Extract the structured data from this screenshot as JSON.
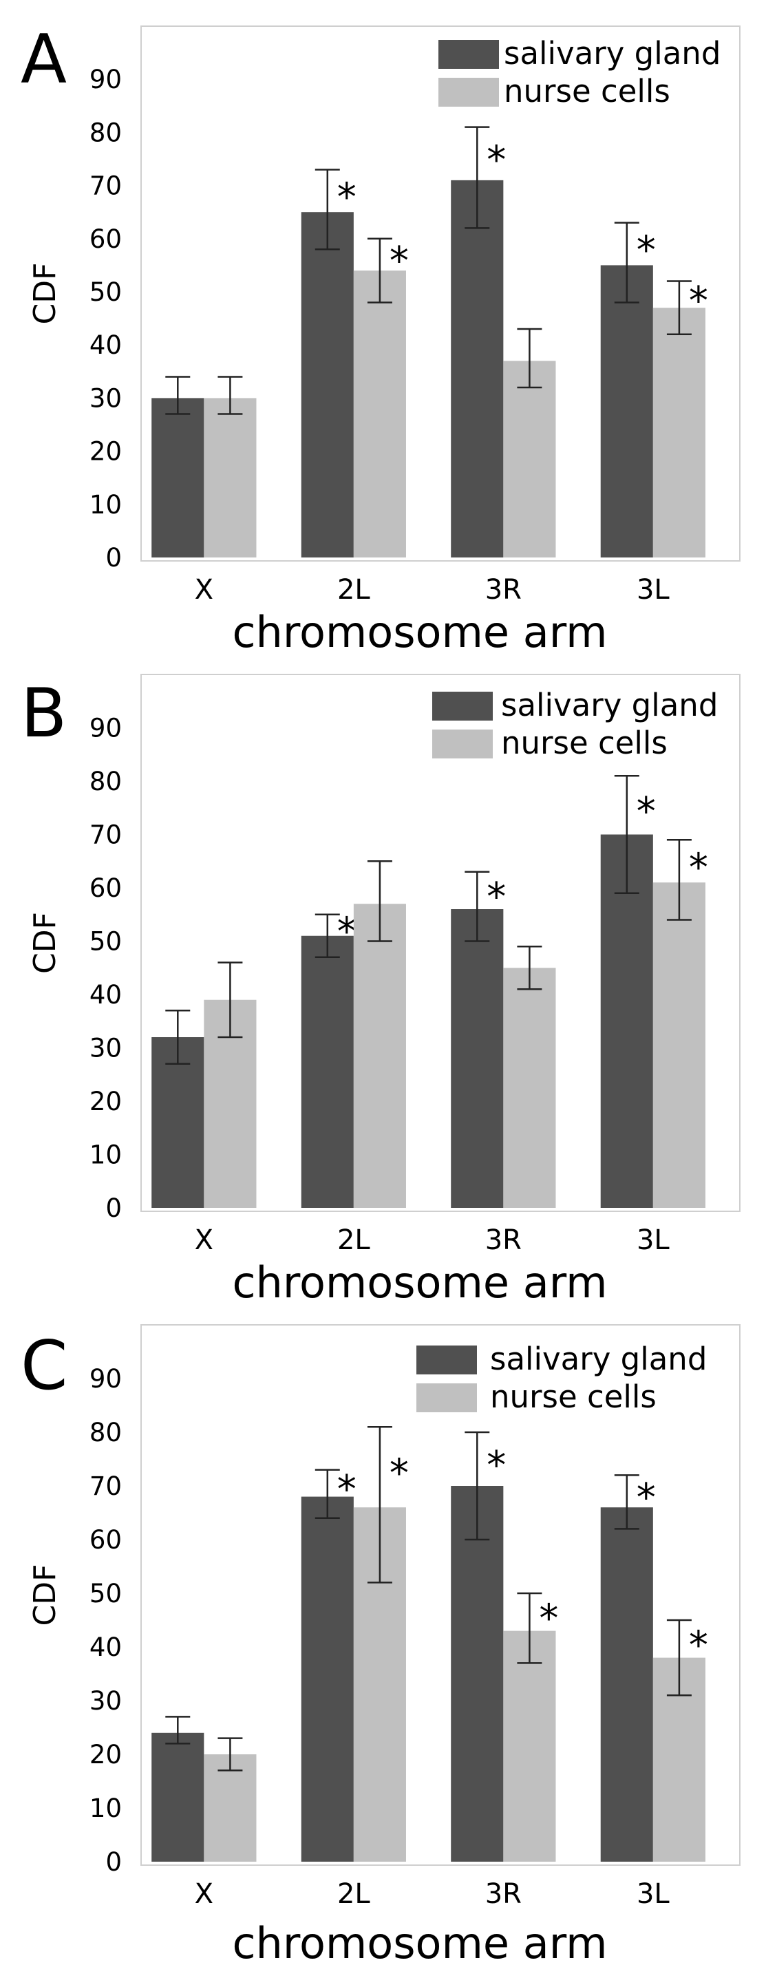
{
  "colors": {
    "salivary_gland": "#505050",
    "nurse_cells": "#c0c0c0",
    "frame": "#cfcfcf",
    "error_bar": "#222222"
  },
  "chart_data": [
    {
      "type": "bar",
      "panel": "A",
      "categories": [
        "X",
        "2L",
        "3R",
        "3L"
      ],
      "series": [
        {
          "name": "salivary gland",
          "values": [
            30,
            65,
            71,
            55
          ],
          "err_low": [
            27,
            58,
            62,
            48
          ],
          "err_high": [
            34,
            73,
            81,
            63
          ],
          "significant": [
            false,
            true,
            true,
            true
          ]
        },
        {
          "name": "nurse cells",
          "values": [
            30,
            54,
            37,
            47
          ],
          "err_low": [
            27,
            48,
            32,
            42
          ],
          "err_high": [
            34,
            60,
            43,
            52
          ],
          "significant": [
            false,
            true,
            false,
            true
          ]
        }
      ],
      "xlabel": "chromosome arm",
      "ylabel": "CDF",
      "ylim": [
        0,
        100
      ],
      "yticks": [
        0,
        10,
        20,
        30,
        40,
        50,
        60,
        70,
        80,
        90
      ],
      "significance_marker": "*",
      "legend": "top-right",
      "grid": false
    },
    {
      "type": "bar",
      "panel": "B",
      "categories": [
        "X",
        "2L",
        "3R",
        "3L"
      ],
      "series": [
        {
          "name": "salivary gland",
          "values": [
            32,
            51,
            56,
            70
          ],
          "err_low": [
            27,
            47,
            50,
            59
          ],
          "err_high": [
            37,
            55,
            63,
            81
          ],
          "significant": [
            false,
            true,
            true,
            true
          ]
        },
        {
          "name": "nurse cells",
          "values": [
            39,
            57,
            45,
            61
          ],
          "err_low": [
            32,
            50,
            41,
            54
          ],
          "err_high": [
            46,
            65,
            49,
            69
          ],
          "significant": [
            false,
            false,
            false,
            true
          ]
        }
      ],
      "xlabel": "chromosome arm",
      "ylabel": "CDF",
      "ylim": [
        0,
        100
      ],
      "yticks": [
        0,
        10,
        20,
        30,
        40,
        50,
        60,
        70,
        80,
        90
      ],
      "significance_marker": "*",
      "legend": "top-right",
      "grid": false
    },
    {
      "type": "bar",
      "panel": "C",
      "categories": [
        "X",
        "2L",
        "3R",
        "3L"
      ],
      "series": [
        {
          "name": "salivary gland",
          "values": [
            24,
            68,
            70,
            66
          ],
          "err_low": [
            22,
            64,
            60,
            62
          ],
          "err_high": [
            27,
            73,
            80,
            72
          ],
          "significant": [
            false,
            true,
            true,
            true
          ]
        },
        {
          "name": "nurse cells",
          "values": [
            20,
            66,
            43,
            38
          ],
          "err_low": [
            17,
            52,
            37,
            31
          ],
          "err_high": [
            23,
            81,
            50,
            45
          ],
          "significant": [
            false,
            true,
            true,
            true
          ]
        }
      ],
      "xlabel": "chromosome arm",
      "ylabel": "CDF",
      "ylim": [
        0,
        100
      ],
      "yticks": [
        0,
        10,
        20,
        30,
        40,
        50,
        60,
        70,
        80,
        90
      ],
      "significance_marker": "*",
      "legend": "top-right",
      "grid": false
    }
  ]
}
